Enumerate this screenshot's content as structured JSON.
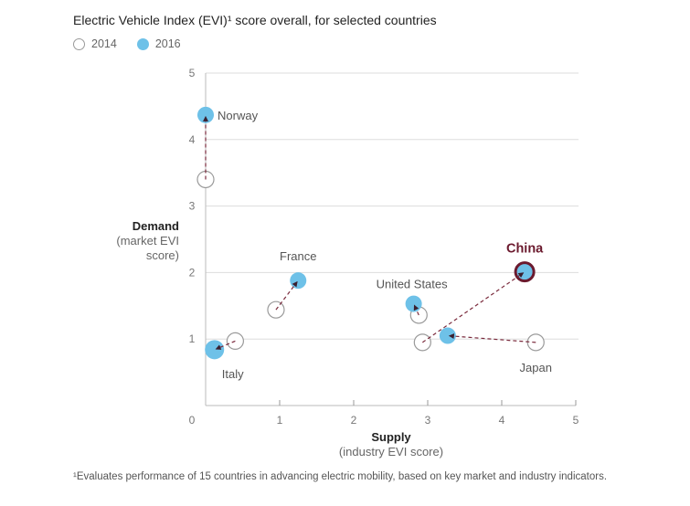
{
  "chart_data": {
    "type": "scatter",
    "title": "Electric Vehicle Index (EVI)¹ score overall, for selected countries",
    "legend": [
      {
        "label": "2014",
        "style": "open-circle"
      },
      {
        "label": "2016",
        "style": "filled-circle",
        "color": "#6ec1e8"
      }
    ],
    "legend_placement": "top-left",
    "xlabel": "Supply",
    "xlabel_sub": "(industry EVI score)",
    "ylabel": "Demand",
    "ylabel_sub": "(market EVI score)",
    "xlim": [
      0,
      5
    ],
    "ylim": [
      0,
      5
    ],
    "xticks": [
      "0",
      "1",
      "2",
      "3",
      "4",
      "5"
    ],
    "yticks": [
      "1",
      "2",
      "3",
      "4",
      "5"
    ],
    "grid": "horizontal",
    "series": [
      {
        "name": "Norway",
        "highlight": false,
        "2014": {
          "supply": 0.0,
          "demand": 3.4
        },
        "2016": {
          "supply": 0.0,
          "demand": 4.37
        }
      },
      {
        "name": "France",
        "highlight": false,
        "2014": {
          "supply": 0.95,
          "demand": 1.44
        },
        "2016": {
          "supply": 1.25,
          "demand": 1.88
        }
      },
      {
        "name": "Italy",
        "highlight": false,
        "2014": {
          "supply": 0.4,
          "demand": 0.97
        },
        "2016": {
          "supply": 0.12,
          "demand": 0.84
        }
      },
      {
        "name": "United States",
        "highlight": false,
        "2014": {
          "supply": 2.88,
          "demand": 1.36
        },
        "2016": {
          "supply": 2.81,
          "demand": 1.53
        }
      },
      {
        "name": "China",
        "highlight": true,
        "2014": {
          "supply": 2.93,
          "demand": 0.95
        },
        "2016": {
          "supply": 4.31,
          "demand": 2.01
        }
      },
      {
        "name": "Japan",
        "highlight": false,
        "2014": {
          "supply": 4.46,
          "demand": 0.95
        },
        "2016": {
          "supply": 3.27,
          "demand": 1.05
        }
      }
    ],
    "colors": {
      "fill_2016": "#6ec1e8",
      "arrow": "#7a2a3c",
      "highlight": "#6b1a2e",
      "open_stroke": "#9a9a9a",
      "grid": "#dddddd"
    }
  },
  "footnote": "¹Evaluates performance of 15 countries in advancing electric mobility, based on key market and industry indicators."
}
